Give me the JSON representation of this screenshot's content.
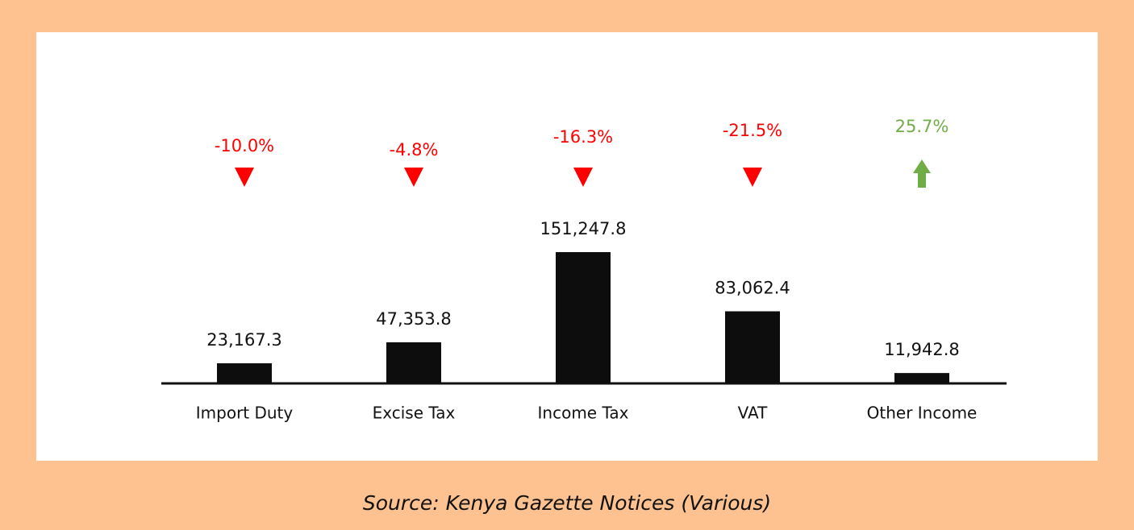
{
  "chart_data": {
    "type": "bar",
    "categories": [
      "Import Duty",
      "Excise Tax",
      "Income Tax",
      "VAT",
      "Other Income"
    ],
    "values": [
      23167.3,
      47353.8,
      151247.8,
      83062.4,
      11942.8
    ],
    "value_labels": [
      "23,167.3",
      "47,353.8",
      "151,247.8",
      "83,062.4",
      "11,942.8"
    ],
    "color": "#0d0d0d",
    "changes": [
      -10.0,
      -4.8,
      -16.3,
      -21.5,
      25.7
    ],
    "change_labels": [
      "-10.0%",
      "-4.8%",
      "-16.3%",
      "-21.5%",
      "25.7%"
    ],
    "negative_color": "#ff0000",
    "positive_color": "#70ad47",
    "source": "Source: Kenya Gazette Notices (Various)"
  }
}
